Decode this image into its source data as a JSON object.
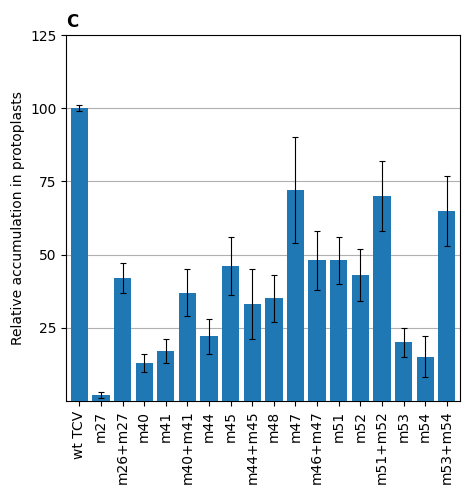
{
  "chart_data": {
    "type": "bar",
    "title": "C",
    "ylabel": "Relative accumulation in protoplasts",
    "categories": [
      "wt TCV",
      "m27",
      "m26+m27",
      "m40",
      "m41",
      "m40+m41",
      "m44",
      "m45",
      "m44+m45",
      "m48",
      "m47",
      "m46+m47",
      "m51",
      "m52",
      "m51+m52",
      "m53",
      "m54",
      "m53+m54"
    ],
    "values": [
      100,
      2,
      42,
      13,
      17,
      37,
      22,
      46,
      33,
      35,
      72,
      48,
      48,
      43,
      70,
      20,
      15,
      65
    ],
    "errors": [
      1,
      1,
      5,
      3,
      4,
      8,
      6,
      10,
      12,
      8,
      18,
      10,
      8,
      9,
      12,
      5,
      7,
      12
    ],
    "ylim": [
      0,
      125
    ],
    "yticks": [
      25,
      50,
      75,
      100,
      125
    ],
    "grid": true
  }
}
